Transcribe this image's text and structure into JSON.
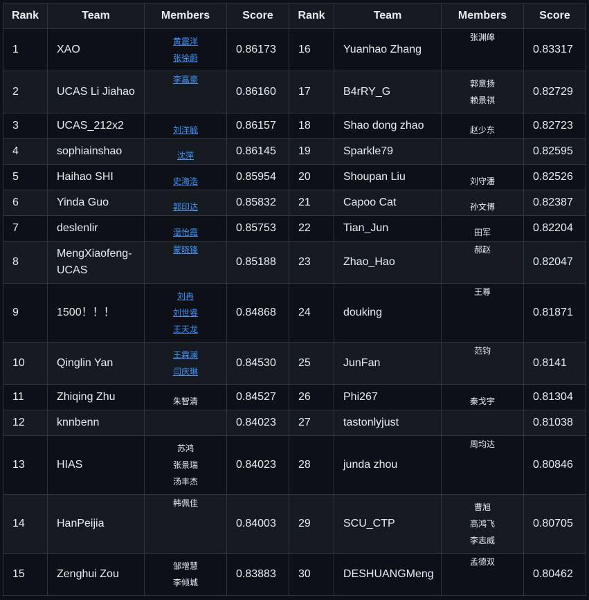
{
  "headers": [
    "Rank",
    "Team",
    "Members",
    "Score",
    "Rank",
    "Team",
    "Members",
    "Score"
  ],
  "rows": [
    {
      "h": 61,
      "L": {
        "rank": "1",
        "team": "XAO",
        "score": "0.86173",
        "members": [
          {
            "name": "黄震洋",
            "link": true
          },
          {
            "name": "张徐蔚",
            "link": true
          }
        ],
        "valign": "mid"
      },
      "R": {
        "rank": "16",
        "team": "Yuanhao Zhang",
        "score": "0.83317",
        "members": [
          {
            "name": "张渊皞",
            "link": false
          }
        ],
        "valign": "top"
      }
    },
    {
      "h": 61,
      "L": {
        "rank": "2",
        "team": "UCAS Li Jiahao",
        "score": "0.86160",
        "members": [
          {
            "name": "李嘉豪",
            "link": true
          }
        ],
        "valign": "top"
      },
      "R": {
        "rank": "17",
        "team": "B4rRY_G",
        "score": "0.82729",
        "members": [
          {
            "name": "郭意扬",
            "link": false
          },
          {
            "name": "赖景祺",
            "link": false
          }
        ],
        "valign": "mid"
      }
    },
    {
      "h": 37,
      "L": {
        "rank": "3",
        "team": "UCAS_212x2",
        "score": "0.86157",
        "members": [
          {
            "name": "刘洋毓",
            "link": true
          }
        ],
        "valign": "bot"
      },
      "R": {
        "rank": "18",
        "team": "Shao dong zhao",
        "score": "0.82723",
        "members": [
          {
            "name": "赵少东",
            "link": false
          }
        ],
        "valign": "bot"
      }
    },
    {
      "h": 37,
      "L": {
        "rank": "4",
        "team": "sophiainshao",
        "score": "0.86145",
        "members": [
          {
            "name": "沈萍",
            "link": true
          }
        ],
        "valign": "bot"
      },
      "R": {
        "rank": "19",
        "team": "Sparkle79",
        "score": "0.82595",
        "members": [],
        "valign": "mid"
      }
    },
    {
      "h": 37,
      "L": {
        "rank": "5",
        "team": "Haihao SHI",
        "score": "0.85954",
        "members": [
          {
            "name": "史海浩",
            "link": true
          }
        ],
        "valign": "bot"
      },
      "R": {
        "rank": "20",
        "team": "Shoupan Liu",
        "score": "0.82526",
        "members": [
          {
            "name": "刘守潘",
            "link": false
          }
        ],
        "valign": "bot"
      }
    },
    {
      "h": 37,
      "L": {
        "rank": "6",
        "team": "Yinda Guo",
        "score": "0.85832",
        "members": [
          {
            "name": "郭印达",
            "link": true
          }
        ],
        "valign": "bot"
      },
      "R": {
        "rank": "21",
        "team": "Capoo Cat",
        "score": "0.82387",
        "members": [
          {
            "name": "孙文博",
            "link": false
          }
        ],
        "valign": "bot"
      }
    },
    {
      "h": 37,
      "L": {
        "rank": "7",
        "team": "deslenlir",
        "score": "0.85753",
        "members": [
          {
            "name": "温怡霞",
            "link": true
          }
        ],
        "valign": "bot"
      },
      "R": {
        "rank": "22",
        "team": "Tian_Jun",
        "score": "0.82204",
        "members": [
          {
            "name": "田军",
            "link": false
          }
        ],
        "valign": "bot"
      }
    },
    {
      "h": 61,
      "L": {
        "rank": "8",
        "team": "MengXiaofeng-UCAS",
        "score": "0.85188",
        "members": [
          {
            "name": "蒙晓锋",
            "link": true
          }
        ],
        "valign": "top"
      },
      "R": {
        "rank": "23",
        "team": "Zhao_Hao",
        "score": "0.82047",
        "members": [
          {
            "name": "郝赵",
            "link": false
          }
        ],
        "valign": "top"
      }
    },
    {
      "h": 85,
      "L": {
        "rank": "9",
        "team": "1500！！！",
        "score": "0.84868",
        "members": [
          {
            "name": "刘冉",
            "link": true
          },
          {
            "name": "刘世睿",
            "link": true
          },
          {
            "name": "王天龙",
            "link": true
          }
        ],
        "valign": "mid"
      },
      "R": {
        "rank": "24",
        "team": "douking",
        "score": "0.81871",
        "members": [
          {
            "name": "王尊",
            "link": false
          }
        ],
        "valign": "top"
      }
    },
    {
      "h": 61,
      "L": {
        "rank": "10",
        "team": "Qinglin Yan",
        "score": "0.84530",
        "members": [
          {
            "name": "王霖澜",
            "link": true
          },
          {
            "name": "闫庆琳",
            "link": true
          }
        ],
        "valign": "mid"
      },
      "R": {
        "rank": "25",
        "team": "JunFan",
        "score": "0.8141",
        "members": [
          {
            "name": "范钧",
            "link": false
          }
        ],
        "valign": "top"
      }
    },
    {
      "h": 37,
      "L": {
        "rank": "11",
        "team": "Zhiqing Zhu",
        "score": "0.84527",
        "members": [
          {
            "name": "朱智清",
            "link": false
          }
        ],
        "valign": "bot"
      },
      "R": {
        "rank": "26",
        "team": "Phi267",
        "score": "0.81304",
        "members": [
          {
            "name": "秦戈宇",
            "link": false
          }
        ],
        "valign": "bot"
      }
    },
    {
      "h": 37,
      "L": {
        "rank": "12",
        "team": "knnbenn",
        "score": "0.84023",
        "members": [],
        "valign": "mid"
      },
      "R": {
        "rank": "27",
        "team": "tastonlyjust",
        "score": "0.81038",
        "members": [],
        "valign": "mid"
      }
    },
    {
      "h": 85,
      "L": {
        "rank": "13",
        "team": "HIAS",
        "score": "0.84023",
        "members": [
          {
            "name": "苏鸿",
            "link": false
          },
          {
            "name": "张景瑞",
            "link": false
          },
          {
            "name": "汤丰杰",
            "link": false
          }
        ],
        "valign": "mid"
      },
      "R": {
        "rank": "28",
        "team": "junda zhou",
        "score": "0.80846",
        "members": [
          {
            "name": "周均达",
            "link": false
          }
        ],
        "valign": "top"
      }
    },
    {
      "h": 85,
      "L": {
        "rank": "14",
        "team": "HanPeijia",
        "score": "0.84003",
        "members": [
          {
            "name": "韩佩佳",
            "link": false
          }
        ],
        "valign": "top"
      },
      "R": {
        "rank": "29",
        "team": "SCU_CTP",
        "score": "0.80705",
        "members": [
          {
            "name": "曹旭",
            "link": false
          },
          {
            "name": "高鸿飞",
            "link": false
          },
          {
            "name": "李志威",
            "link": false
          }
        ],
        "valign": "mid"
      }
    },
    {
      "h": 61,
      "L": {
        "rank": "15",
        "team": "Zenghui Zou",
        "score": "0.83883",
        "members": [
          {
            "name": "邹增慧",
            "link": false
          },
          {
            "name": "李倾城",
            "link": false
          }
        ],
        "valign": "mid"
      },
      "R": {
        "rank": "30",
        "team": "DESHUANGMeng",
        "score": "0.80462",
        "members": [
          {
            "name": "孟德双",
            "link": false
          }
        ],
        "valign": "top"
      }
    }
  ]
}
